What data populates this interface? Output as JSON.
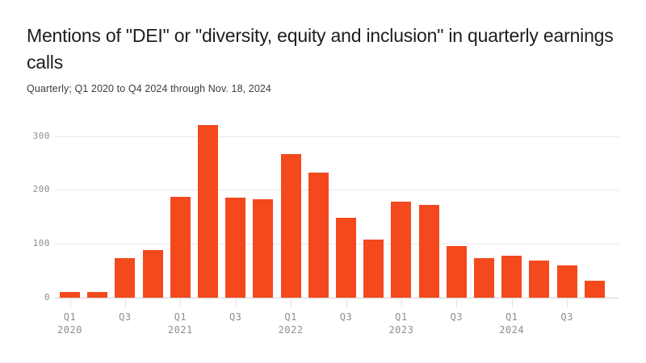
{
  "header": {
    "title": "Mentions of \"DEI\" or \"diversity, equity and inclusion\" in quarterly earnings calls",
    "subtitle": "Quarterly; Q1 2020 to Q4 2024 through Nov. 18, 2024"
  },
  "colors": {
    "bar": "#f3491d",
    "grid": "#e8e8e8",
    "baseline": "#d2d2d2",
    "tick": "#e2e2e2",
    "axis_text": "#8e8e8e",
    "title_text": "#1e1e1e",
    "subtitle_text": "#3c3c3c",
    "background": "#ffffff"
  },
  "chart_data": {
    "type": "bar",
    "title": "Mentions of \"DEI\" or \"diversity, equity and inclusion\" in quarterly earnings calls",
    "subtitle": "Quarterly; Q1 2020 to Q4 2024 through Nov. 18, 2024",
    "categories": [
      "Q1 2020",
      "Q2 2020",
      "Q3 2020",
      "Q4 2020",
      "Q1 2021",
      "Q2 2021",
      "Q3 2021",
      "Q4 2021",
      "Q1 2022",
      "Q2 2022",
      "Q3 2022",
      "Q4 2022",
      "Q1 2023",
      "Q2 2023",
      "Q3 2023",
      "Q4 2023",
      "Q1 2024",
      "Q2 2024",
      "Q3 2024",
      "Q4 2024"
    ],
    "values": [
      10,
      10,
      74,
      89,
      187,
      320,
      186,
      183,
      267,
      232,
      148,
      108,
      178,
      172,
      96,
      73,
      78,
      69,
      60,
      31
    ],
    "xlabel": "",
    "ylabel": "",
    "ylim": [
      0,
      340
    ],
    "yticks": [
      0,
      100,
      200,
      300
    ],
    "grid": "horizontal",
    "legend": "none",
    "x_tick_labels": [
      {
        "index": 0,
        "quarter": "Q1",
        "year": "2020"
      },
      {
        "index": 2,
        "quarter": "Q3"
      },
      {
        "index": 4,
        "quarter": "Q1",
        "year": "2021"
      },
      {
        "index": 6,
        "quarter": "Q3"
      },
      {
        "index": 8,
        "quarter": "Q1",
        "year": "2022"
      },
      {
        "index": 10,
        "quarter": "Q3"
      },
      {
        "index": 12,
        "quarter": "Q1",
        "year": "2023"
      },
      {
        "index": 14,
        "quarter": "Q3"
      },
      {
        "index": 16,
        "quarter": "Q1",
        "year": "2024"
      },
      {
        "index": 18,
        "quarter": "Q3"
      }
    ]
  }
}
